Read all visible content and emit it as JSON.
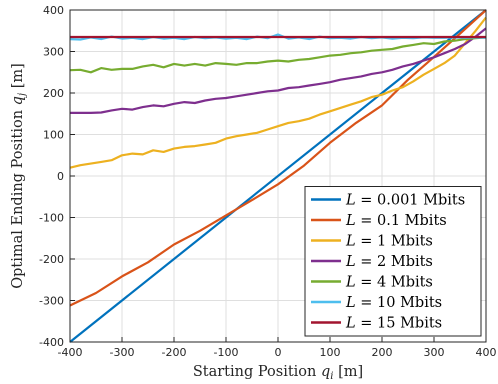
{
  "chart_data": {
    "type": "line",
    "xlabel": "Starting Position q_i [m]",
    "xlabel_main": "Starting Position ",
    "xlabel_var": "q",
    "xlabel_sub": "i",
    "xlabel_unit": " [m]",
    "ylabel": "Optimal Ending Position q_j [m]",
    "ylabel_main": "Optimal Ending Position ",
    "ylabel_var": "q",
    "ylabel_sub": "j",
    "ylabel_unit": " [m]",
    "xlim": [
      -400,
      400
    ],
    "ylim": [
      -400,
      400
    ],
    "xticks": [
      -400,
      -300,
      -200,
      -100,
      0,
      100,
      200,
      300,
      400
    ],
    "yticks": [
      -400,
      -300,
      -200,
      -100,
      0,
      100,
      200,
      300,
      400
    ],
    "grid": true,
    "legend_position": "bottom-right",
    "series": [
      {
        "name": "L = 0.001 Mbits",
        "var": "L",
        "rest": " = 0.001 Mbits",
        "color": "#0072bd",
        "x": [
          -400,
          400
        ],
        "y": [
          -400,
          400
        ]
      },
      {
        "name": "L = 0.1 Mbits",
        "var": "L",
        "rest": " = 0.1 Mbits",
        "color": "#d95319",
        "x": [
          -400,
          -350,
          -300,
          -250,
          -200,
          -150,
          -100,
          -50,
          0,
          50,
          100,
          150,
          200,
          250,
          300,
          350,
          400
        ],
        "y": [
          -312,
          -282,
          -242,
          -208,
          -165,
          -132,
          -95,
          -58,
          -20,
          25,
          80,
          128,
          170,
          232,
          287,
          343,
          400
        ]
      },
      {
        "name": "L = 1 Mbits",
        "var": "L",
        "rest": " = 1 Mbits",
        "color": "#edb120",
        "x": [
          -400,
          -380,
          -360,
          -340,
          -320,
          -300,
          -280,
          -260,
          -240,
          -220,
          -200,
          -180,
          -160,
          -140,
          -120,
          -100,
          -80,
          -60,
          -40,
          -20,
          0,
          20,
          40,
          60,
          80,
          100,
          120,
          140,
          160,
          180,
          200,
          220,
          240,
          260,
          280,
          300,
          320,
          340,
          360,
          380,
          400
        ],
        "y": [
          20,
          26,
          30,
          34,
          38,
          50,
          54,
          52,
          62,
          58,
          66,
          70,
          72,
          76,
          80,
          90,
          96,
          100,
          104,
          112,
          120,
          128,
          132,
          138,
          148,
          156,
          164,
          172,
          180,
          190,
          196,
          206,
          214,
          228,
          244,
          258,
          272,
          290,
          320,
          350,
          382
        ]
      },
      {
        "name": "L = 2 Mbits",
        "var": "L",
        "rest": " = 2 Mbits",
        "color": "#7e2f8e",
        "x": [
          -400,
          -380,
          -360,
          -340,
          -320,
          -300,
          -280,
          -260,
          -240,
          -220,
          -200,
          -180,
          -160,
          -140,
          -120,
          -100,
          -80,
          -60,
          -40,
          -20,
          0,
          20,
          40,
          60,
          80,
          100,
          120,
          140,
          160,
          180,
          200,
          220,
          240,
          260,
          280,
          300,
          320,
          340,
          360,
          380,
          400
        ],
        "y": [
          152,
          152,
          152,
          153,
          158,
          162,
          160,
          166,
          170,
          168,
          174,
          178,
          176,
          182,
          186,
          188,
          192,
          196,
          200,
          204,
          206,
          212,
          214,
          218,
          222,
          226,
          232,
          236,
          240,
          246,
          250,
          256,
          264,
          270,
          278,
          286,
          296,
          306,
          318,
          336,
          356
        ]
      },
      {
        "name": "L = 4 Mbits",
        "var": "L",
        "rest": " = 4 Mbits",
        "color": "#77ac30",
        "x": [
          -400,
          -380,
          -360,
          -340,
          -320,
          -300,
          -280,
          -260,
          -240,
          -220,
          -200,
          -180,
          -160,
          -140,
          -120,
          -100,
          -80,
          -60,
          -40,
          -20,
          0,
          20,
          40,
          60,
          80,
          100,
          120,
          140,
          160,
          180,
          200,
          220,
          240,
          260,
          280,
          300,
          320,
          340,
          360,
          380,
          400
        ],
        "y": [
          255,
          256,
          250,
          260,
          256,
          258,
          258,
          264,
          268,
          262,
          270,
          266,
          270,
          266,
          272,
          270,
          268,
          272,
          272,
          276,
          278,
          276,
          280,
          282,
          286,
          290,
          292,
          296,
          298,
          302,
          304,
          306,
          312,
          316,
          320,
          318,
          324,
          326,
          330,
          332,
          334
        ]
      },
      {
        "name": "L = 10 Mbits",
        "var": "L",
        "rest": " = 10 Mbits",
        "color": "#4dbeee",
        "x": [
          -400,
          -380,
          -360,
          -340,
          -320,
          -300,
          -280,
          -260,
          -240,
          -220,
          -200,
          -180,
          -160,
          -140,
          -120,
          -100,
          -80,
          -60,
          -40,
          -20,
          0,
          20,
          40,
          60,
          80,
          100,
          120,
          140,
          160,
          180,
          200,
          220,
          240,
          260,
          280,
          300,
          320,
          340,
          360,
          380,
          400
        ],
        "y": [
          330,
          329,
          334,
          330,
          336,
          331,
          333,
          330,
          335,
          331,
          333,
          330,
          335,
          332,
          334,
          331,
          333,
          330,
          336,
          332,
          341,
          331,
          334,
          330,
          336,
          332,
          333,
          331,
          335,
          332,
          334,
          331,
          333,
          332,
          334,
          333,
          333,
          334,
          333,
          334,
          333
        ]
      },
      {
        "name": "L = 15 Mbits",
        "var": "L",
        "rest": " = 15 Mbits",
        "color": "#a2142f",
        "x": [
          -400,
          400
        ],
        "y": [
          335,
          335
        ]
      }
    ]
  }
}
